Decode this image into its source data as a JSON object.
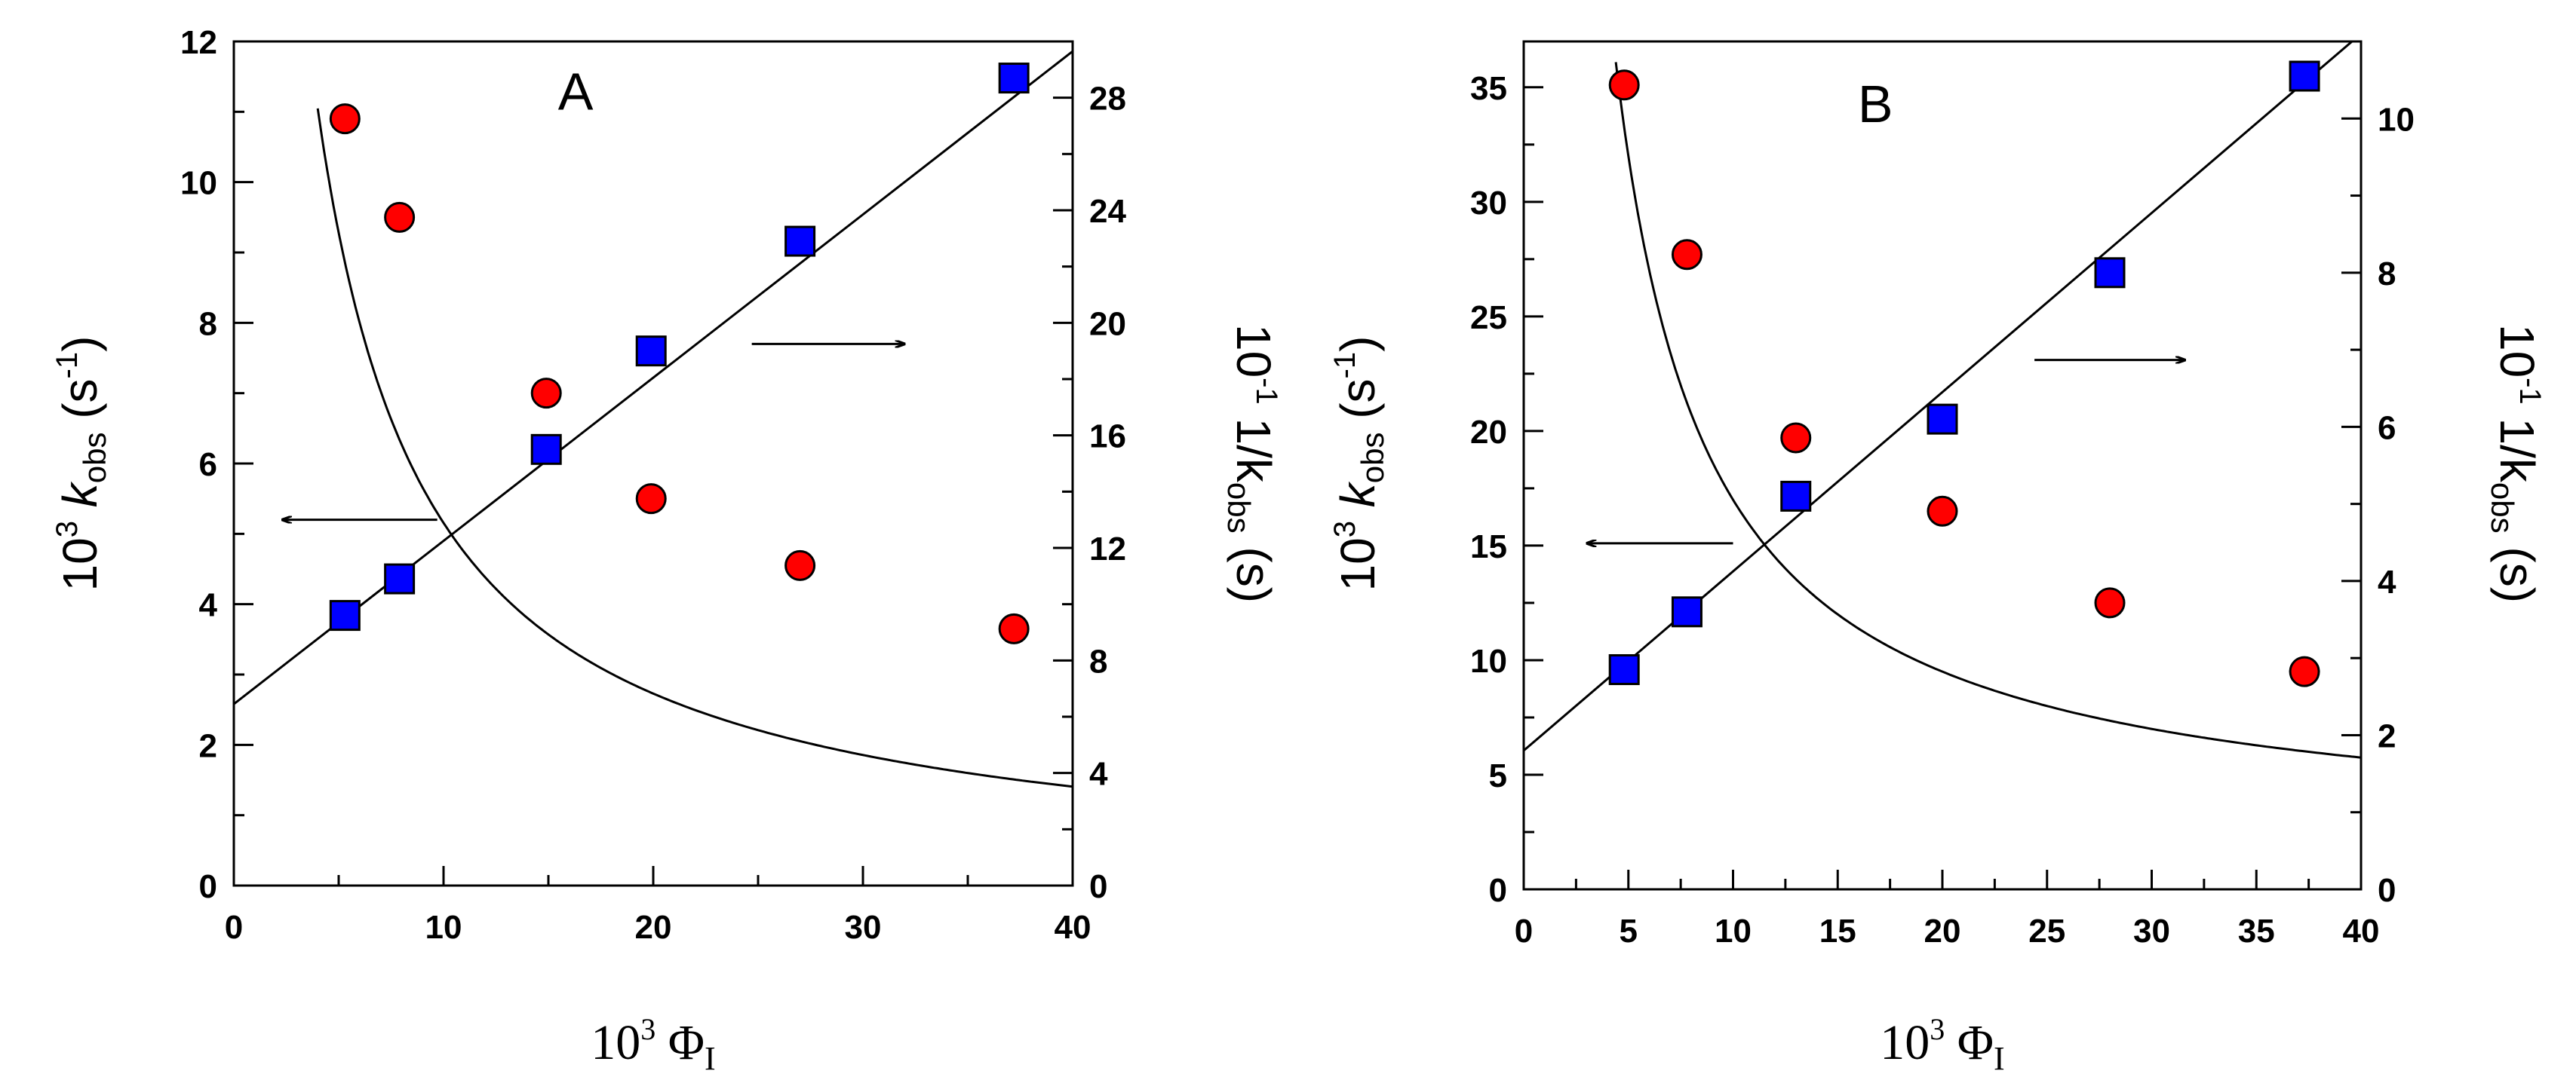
{
  "colors": {
    "circle_fill": "#ff0000",
    "square_fill": "#0000ff",
    "line": "#000000"
  },
  "chart_data": [
    {
      "type": "scatter",
      "panel": "A",
      "xlabel": {
        "base": "10",
        "exp": "3",
        "symbol": " Φ",
        "sub": "I"
      },
      "ylabel_left": {
        "base": "10",
        "exp": "3",
        "k": " k",
        "sub": "obs",
        "unit": " (s",
        "unit_exp": "-1",
        "close": ")"
      },
      "ylabel_right": {
        "base": "10",
        "exp": "-1",
        "rest": " 1/k",
        "sub": "obs",
        "unit": " (s)"
      },
      "xlim": [
        0,
        40
      ],
      "ylim_left": [
        0,
        12
      ],
      "ylim_right": [
        0,
        30
      ],
      "x_ticks": [
        0,
        10,
        20,
        30,
        40
      ],
      "x_minor_step": 5,
      "y_left_ticks": [
        0,
        2,
        4,
        6,
        8,
        10,
        12
      ],
      "y_left_minor_step": 1,
      "y_right_ticks": [
        0,
        4,
        8,
        12,
        16,
        20,
        24,
        28
      ],
      "y_right_minor_step": 2,
      "series": [
        {
          "name": "k_obs",
          "axis": "left",
          "marker": "circle",
          "x": [
            5.3,
            7.9,
            14.9,
            19.9,
            27.0,
            37.2
          ],
          "y": [
            10.9,
            9.5,
            7.0,
            5.5,
            4.55,
            3.65
          ]
        },
        {
          "name": "1/k_obs",
          "axis": "right",
          "marker": "square",
          "x": [
            5.3,
            7.9,
            14.9,
            19.9,
            27.0,
            37.2
          ],
          "y": [
            9.6,
            10.9,
            15.5,
            19.0,
            22.9,
            28.7
          ]
        }
      ],
      "fit_curve": {
        "axis": "left",
        "model": "inverse",
        "a": 0.0,
        "b": 58.0,
        "c": 1.25,
        "x_range": [
          4.0,
          40
        ]
      },
      "fit_line": {
        "axis": "right",
        "intercept": 6.45,
        "slope": 0.58,
        "x_range": [
          0,
          40
        ]
      },
      "arrows": [
        {
          "direction": "left",
          "from": [
            9.7,
            5.2
          ],
          "to": [
            2.3,
            5.2
          ],
          "axis": "left"
        },
        {
          "direction": "right",
          "from": [
            24.7,
            7.7
          ],
          "to": [
            32.0,
            7.7
          ],
          "axis": "left"
        }
      ],
      "panel_label_pos": [
        16.3,
        11.3
      ]
    },
    {
      "type": "scatter",
      "panel": "B",
      "xlabel": {
        "base": "10",
        "exp": "3",
        "symbol": " Φ",
        "sub": "I"
      },
      "ylabel_left": {
        "base": "10",
        "exp": "3",
        "k": " k",
        "sub": "obs",
        "unit": " (s",
        "unit_exp": "-1",
        "close": ")"
      },
      "ylabel_right": {
        "base": "10",
        "exp": "-1",
        "rest": " 1/k",
        "sub": "obs",
        "unit": " (s)"
      },
      "xlim": [
        0,
        40
      ],
      "ylim_left": [
        0,
        37
      ],
      "ylim_right": [
        0,
        11
      ],
      "x_ticks": [
        0,
        5,
        10,
        15,
        20,
        25,
        30,
        35,
        40
      ],
      "x_minor_step": 2.5,
      "y_left_ticks": [
        0,
        5,
        10,
        15,
        20,
        25,
        30,
        35
      ],
      "y_left_minor_step": 2.5,
      "y_right_ticks": [
        0,
        2,
        4,
        6,
        8,
        10
      ],
      "y_right_minor_step": 1,
      "series": [
        {
          "name": "k_obs",
          "axis": "left",
          "marker": "circle",
          "x": [
            4.8,
            7.8,
            13.0,
            20.0,
            28.0,
            37.3
          ],
          "y": [
            35.1,
            27.7,
            19.7,
            16.5,
            12.5,
            9.5
          ]
        },
        {
          "name": "1/k_obs",
          "axis": "right",
          "marker": "square",
          "x": [
            4.8,
            7.8,
            13.0,
            20.0,
            28.0,
            37.3
          ],
          "y": [
            2.85,
            3.6,
            5.1,
            6.1,
            8.0,
            10.55
          ]
        }
      ],
      "fit_curve": {
        "axis": "left",
        "model": "inverse",
        "a": 2.0,
        "b": 150.0,
        "c": 0.0,
        "x_range": [
          4.1,
          40
        ]
      },
      "fit_line": {
        "axis": "right",
        "intercept": 1.8,
        "slope": 0.2325,
        "x_range": [
          0,
          40
        ]
      },
      "arrows": [
        {
          "direction": "left",
          "from": [
            10.0,
            15.1
          ],
          "to": [
            3.0,
            15.1
          ],
          "axis": "left"
        },
        {
          "direction": "right",
          "from": [
            24.4,
            23.1
          ],
          "to": [
            31.6,
            23.1
          ],
          "axis": "left"
        }
      ],
      "panel_label_pos": [
        16.8,
        34.3
      ]
    }
  ]
}
